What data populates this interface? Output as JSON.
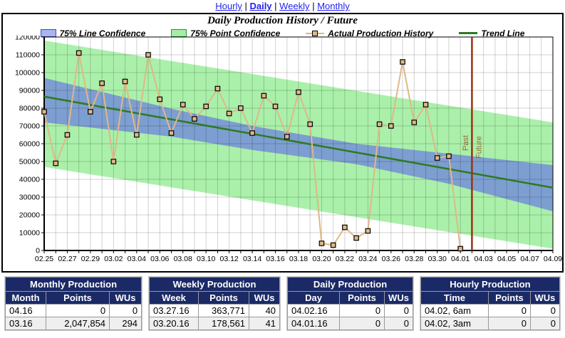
{
  "nav": {
    "separator": "|",
    "items": [
      {
        "label": "Hourly",
        "active": false
      },
      {
        "label": "Daily",
        "active": true
      },
      {
        "label": "Weekly",
        "active": false
      },
      {
        "label": "Monthly",
        "active": false
      }
    ]
  },
  "panel": {
    "title": "Daily Production History / Future",
    "legend": [
      {
        "kind": "band",
        "label": "75% Line Confidence",
        "fill": "#a9b4f0",
        "stroke": "#3d4fc4"
      },
      {
        "kind": "band",
        "label": "75% Point Confidence",
        "fill": "#a5eda5",
        "stroke": "#2f8f2f"
      },
      {
        "kind": "series",
        "label": "Actual Production History",
        "color": "#deb887"
      },
      {
        "kind": "line",
        "label": "Trend Line",
        "color": "#2d7a1e"
      }
    ]
  },
  "chart_data": {
    "type": "line",
    "title": "Daily Production History / Future",
    "ylim": [
      0,
      120000
    ],
    "y_tick_step": 10000,
    "x_days_total": 44,
    "x_tick_labels": [
      "02.25",
      "02.27",
      "02.29",
      "03.02",
      "03.04",
      "03.06",
      "03.08",
      "03.10",
      "03.12",
      "03.14",
      "03.16",
      "03.18",
      "03.20",
      "03.22",
      "03.24",
      "03.26",
      "03.28",
      "03.30",
      "04.01",
      "04.03",
      "04.05",
      "04.07",
      "04.09"
    ],
    "grid": true,
    "legend_position": "top",
    "grid_color": "rgba(0,0,0,0.18)",
    "series": [
      {
        "name": "Actual Production History",
        "color": "#deb887",
        "marker": "square",
        "x_day": [
          0,
          1,
          2,
          3,
          4,
          5,
          6,
          7,
          8,
          9,
          10,
          11,
          12,
          13,
          14,
          15,
          16,
          17,
          18,
          19,
          20,
          21,
          22,
          23,
          24,
          25,
          26,
          27,
          28,
          29,
          30,
          31,
          32,
          33,
          34,
          35,
          36
        ],
        "values": [
          78000,
          49000,
          65000,
          111000,
          78000,
          94000,
          50000,
          95000,
          65000,
          110000,
          85000,
          66000,
          82000,
          74000,
          81000,
          91000,
          77000,
          80000,
          66000,
          87000,
          81000,
          64000,
          89000,
          71000,
          4000,
          3000,
          13000,
          7000,
          11000,
          71000,
          70000,
          106000,
          72000,
          82000,
          52000,
          53000,
          1000
        ]
      }
    ],
    "trend": {
      "name": "Trend Line",
      "color": "#2d7a1e",
      "x_day": [
        0,
        44
      ],
      "values": [
        86500,
        35300
      ]
    },
    "bands": [
      {
        "name": "75% Point Confidence",
        "color": "#aaf0aa",
        "top": [
          [
            0,
            118000
          ],
          [
            44,
            72000
          ]
        ],
        "bottom": [
          [
            0,
            47000
          ],
          [
            44,
            1000
          ]
        ]
      },
      {
        "name": "75% Line Confidence",
        "color": "#7d9ed0",
        "top": [
          [
            0,
            97000
          ],
          [
            11,
            79700
          ],
          [
            18,
            70000
          ],
          [
            27,
            60000
          ],
          [
            35,
            54400
          ],
          [
            44,
            48000
          ]
        ],
        "bottom": [
          [
            0,
            72000
          ],
          [
            11,
            64000
          ],
          [
            18,
            56500
          ],
          [
            27,
            48500
          ],
          [
            35,
            37500
          ],
          [
            44,
            22000
          ]
        ]
      }
    ],
    "divider": {
      "x_day": 37,
      "color": "#993311",
      "label_color": "#996633",
      "labels": [
        "Past",
        "Future"
      ]
    }
  },
  "tables": [
    {
      "title": "Monthly Production",
      "headers": [
        "Month",
        "Points",
        "WUs"
      ],
      "rows": [
        [
          "04.16",
          "0",
          "0"
        ],
        [
          "03.16",
          "2,047,854",
          "294"
        ]
      ]
    },
    {
      "title": "Weekly Production",
      "headers": [
        "Week",
        "Points",
        "WUs"
      ],
      "rows": [
        [
          "03.27.16",
          "363,771",
          "40"
        ],
        [
          "03.20.16",
          "178,561",
          "41"
        ]
      ]
    },
    {
      "title": "Daily Production",
      "headers": [
        "Day",
        "Points",
        "WUs"
      ],
      "rows": [
        [
          "04.02.16",
          "0",
          "0"
        ],
        [
          "04.01.16",
          "0",
          "0"
        ]
      ]
    },
    {
      "title": "Hourly Production",
      "headers": [
        "Time",
        "Points",
        "WUs"
      ],
      "rows": [
        [
          "04.02, 6am",
          "0",
          "0"
        ],
        [
          "04.02, 3am",
          "0",
          "0"
        ]
      ]
    }
  ]
}
